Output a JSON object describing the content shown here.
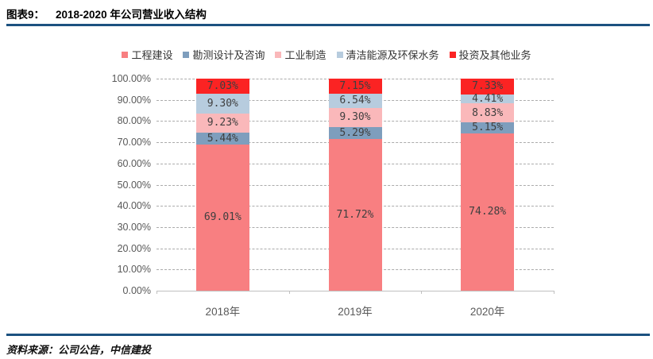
{
  "header": {
    "label": "图表9：",
    "title": "2018-2020 年公司营业收入结构"
  },
  "source": "资料来源：公司公告，中信建投",
  "colors": {
    "accent_rule": "#1C5180",
    "gridline": "#ABABAB",
    "axis_label": "#595959",
    "data_label": "#3F3F3F"
  },
  "chart_data": {
    "type": "bar",
    "stacked": true,
    "title": "2018-2020 年公司营业收入结构",
    "categories": [
      "2018年",
      "2019年",
      "2020年"
    ],
    "series": [
      {
        "name": "工程建设",
        "color": "#F87F81",
        "values": [
          69.01,
          71.72,
          74.28
        ]
      },
      {
        "name": "勘测设计及咨询",
        "color": "#7E9EBD",
        "values": [
          5.44,
          5.29,
          5.15
        ]
      },
      {
        "name": "工业制造",
        "color": "#FAB8BA",
        "values": [
          9.23,
          9.3,
          8.83
        ]
      },
      {
        "name": "清洁能源及环保水务",
        "color": "#B7CCDE",
        "values": [
          9.3,
          6.54,
          4.41
        ]
      },
      {
        "name": "投资及其他业务",
        "color": "#FB2323",
        "values": [
          7.03,
          7.15,
          7.33
        ]
      }
    ],
    "y_ticks": [
      "100.00%",
      "90.00%",
      "80.00%",
      "70.00%",
      "60.00%",
      "50.00%",
      "40.00%",
      "30.00%",
      "20.00%",
      "10.00%",
      "0.00%"
    ],
    "ylim": [
      0,
      100
    ],
    "value_format": "0.00%",
    "legend_position": "top",
    "grid": "horizontal-dashed"
  }
}
